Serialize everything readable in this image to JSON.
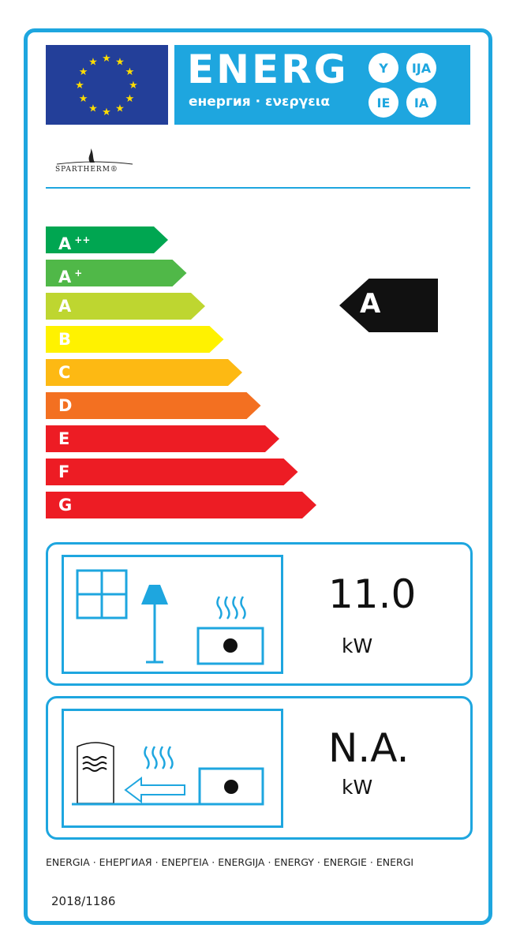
{
  "header": {
    "title": "ENERG",
    "subtitle": "енергия · ενεργεια",
    "suffixes": [
      "Y",
      "IJA",
      "IE",
      "IA"
    ],
    "flag": "eu-flag-icon",
    "brand": "SPARTHERM®"
  },
  "scale": [
    {
      "label": "A",
      "sup": "++",
      "color": "#00a651"
    },
    {
      "label": "A",
      "sup": "+",
      "color": "#50b848"
    },
    {
      "label": "A",
      "sup": "",
      "color": "#bed630"
    },
    {
      "label": "B",
      "sup": "",
      "color": "#fff200"
    },
    {
      "label": "C",
      "sup": "",
      "color": "#fdb913"
    },
    {
      "label": "D",
      "sup": "",
      "color": "#f37021"
    },
    {
      "label": "E",
      "sup": "",
      "color": "#ed1c24"
    },
    {
      "label": "F",
      "sup": "",
      "color": "#ed1c24"
    },
    {
      "label": "G",
      "sup": "",
      "color": "#ed1c24"
    }
  ],
  "rating": {
    "class": "A"
  },
  "direct_heat": {
    "value": "11.0",
    "unit": "kW",
    "icons": [
      "window-icon",
      "lamp-icon",
      "heater-icon"
    ]
  },
  "indirect_heat": {
    "value": "N.A.",
    "unit": "kW",
    "icons": [
      "water-tank-icon",
      "arrow-left-icon",
      "heater-icon"
    ]
  },
  "footer": {
    "languages": "ENERGIA · ЕНЕРГИАЯ · ΕΝΕΡΓΕΙΑ · ENERGIJA · ENERGY · ENERGIE · ENERGI",
    "regulation": "2018/1186"
  },
  "colors": {
    "accent": "#1ea6df",
    "flag": "#233f99"
  }
}
